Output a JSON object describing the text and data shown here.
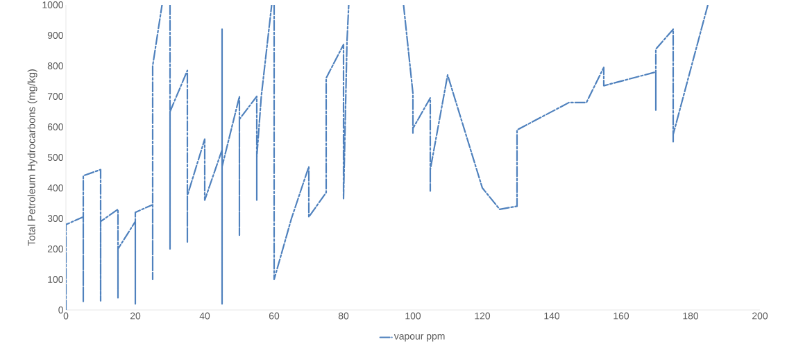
{
  "chart_data": {
    "type": "line",
    "ylabel": "Total Petroleum Hydrocarbons (mg/kg)",
    "x": [
      0,
      0,
      5,
      5,
      5,
      10,
      10,
      10,
      15,
      15,
      15,
      20,
      20,
      20,
      25,
      25,
      25,
      27.7,
      29,
      30,
      30,
      30,
      35,
      35,
      35,
      40,
      40,
      45,
      45,
      45,
      45,
      50,
      50,
      50,
      55,
      55,
      55,
      56.3,
      59.3,
      59.6,
      60,
      60,
      65,
      70,
      70,
      75,
      75,
      80,
      80,
      81,
      81.5,
      90,
      97.3,
      100,
      100,
      100,
      105,
      105,
      105,
      110,
      120,
      125,
      130,
      130,
      145,
      150,
      155,
      155,
      170,
      170,
      170,
      175,
      175,
      175,
      185
    ],
    "series": [
      {
        "name": "vapour ppm",
        "color": "#4f81bd",
        "values": [
          0,
          280,
          305,
          25,
          440,
          460,
          30,
          290,
          330,
          40,
          200,
          290,
          20,
          320,
          345,
          100,
          800,
          1000,
          null,
          1000,
          200,
          650,
          785,
          220,
          375,
          560,
          360,
          525,
          20,
          920,
          470,
          700,
          245,
          625,
          700,
          360,
          500,
          700,
          1000,
          null,
          1000,
          100,
          300,
          470,
          305,
          385,
          760,
          870,
          365,
          880,
          1000,
          null,
          1000,
          710,
          580,
          595,
          695,
          390,
          460,
          770,
          400,
          330,
          340,
          590,
          680,
          680,
          795,
          735,
          780,
          655,
          855,
          920,
          550,
          575,
          1000
        ]
      }
    ],
    "xlim": [
      0,
      200
    ],
    "xticks": [
      0,
      20,
      40,
      60,
      80,
      100,
      120,
      140,
      160,
      180,
      200
    ],
    "ylim": [
      0,
      1000
    ],
    "yticks": [
      0,
      100,
      200,
      300,
      400,
      500,
      600,
      700,
      800,
      900,
      1000
    ],
    "grid": false,
    "legend": "bottom",
    "line_style": "dashed",
    "marker": "none"
  }
}
